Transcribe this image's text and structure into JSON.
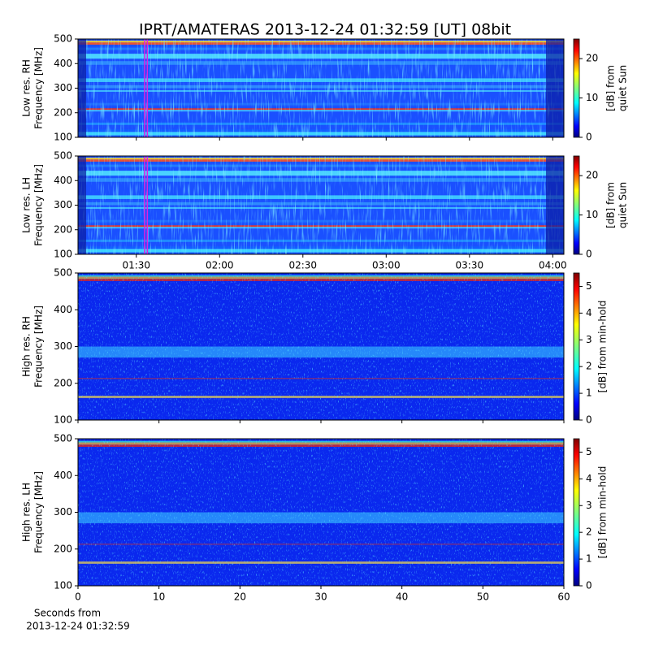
{
  "chart_data": [
    {
      "type": "heatmap",
      "title": "IPRT/AMATERAS 2013-12-24 01:32:59 [UT]   08bit",
      "ylabel": [
        "Low res. RH",
        "Frequency [MHz]"
      ],
      "ylim": [
        100,
        500
      ],
      "yticks": [
        100,
        200,
        300,
        400,
        500
      ],
      "xlim": [
        "01:09",
        "04:04"
      ],
      "xticks": [
        "01:30",
        "02:00",
        "02:30",
        "03:00",
        "03:30",
        "04:00"
      ],
      "show_xtick_labels": false,
      "markers": [
        "01:32:59",
        "01:33:59"
      ],
      "marker_color": "#e020e0",
      "colorbar_label": [
        "[dB] from",
        "quiet Sun"
      ],
      "clim": [
        0,
        25
      ],
      "cticks": [
        0,
        10,
        20
      ],
      "colormap": "jet"
    },
    {
      "type": "heatmap",
      "ylabel": [
        "Low res. LH",
        "Frequency [MHz]"
      ],
      "ylim": [
        100,
        500
      ],
      "yticks": [
        100,
        200,
        300,
        400,
        500
      ],
      "xlim": [
        "01:09",
        "04:04"
      ],
      "xticks": [
        "01:30",
        "02:00",
        "02:30",
        "03:00",
        "03:30",
        "04:00"
      ],
      "show_xtick_labels": true,
      "markers": [
        "01:32:59",
        "01:33:59"
      ],
      "marker_color": "#e020e0",
      "colorbar_label": [
        "[dB] from",
        "quiet Sun"
      ],
      "clim": [
        0,
        25
      ],
      "cticks": [
        0,
        10,
        20
      ],
      "colormap": "jet"
    },
    {
      "type": "heatmap",
      "ylabel": [
        "High res. RH",
        "Frequency [MHz]"
      ],
      "ylim": [
        100,
        500
      ],
      "yticks": [
        100,
        200,
        300,
        400,
        500
      ],
      "xlim": [
        0,
        60
      ],
      "xticks": [
        0,
        10,
        20,
        30,
        40,
        50,
        60
      ],
      "show_xtick_labels": false,
      "colorbar_label": [
        "[dB] from min-hold"
      ],
      "clim": [
        0,
        5.5
      ],
      "cticks": [
        0,
        1,
        2,
        3,
        4,
        5
      ],
      "colormap": "jet"
    },
    {
      "type": "heatmap",
      "ylabel": [
        "High res. LH",
        "Frequency [MHz]"
      ],
      "ylim": [
        100,
        500
      ],
      "yticks": [
        100,
        200,
        300,
        400,
        500
      ],
      "xlim": [
        0,
        60
      ],
      "xticks": [
        0,
        10,
        20,
        30,
        40,
        50,
        60
      ],
      "show_xtick_labels": true,
      "xlabel": [
        "Seconds from",
        "2013-12-24 01:32:59"
      ],
      "colorbar_label": [
        "[dB] from min-hold"
      ],
      "clim": [
        0,
        5.5
      ],
      "cticks": [
        0,
        1,
        2,
        3,
        4,
        5
      ],
      "colormap": "jet"
    }
  ]
}
